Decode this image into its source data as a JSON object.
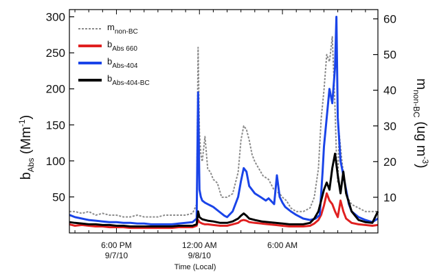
{
  "chart_data": {
    "type": "line",
    "title": "",
    "xlabel": "Time (Local)",
    "ylabel_left": {
      "main": "b",
      "sub": "Abs",
      "suffix": " (Mm",
      "sup": "-1",
      "end": ")"
    },
    "ylabel_right": {
      "main": "m",
      "sub": "non-BC",
      "suffix": " (ug m",
      "sup": "-3",
      "end": ")"
    },
    "x_ticks": [
      {
        "x": 18,
        "label": "6:00 PM",
        "sublabel": "9/7/10"
      },
      {
        "x": 24,
        "label": "12:00 AM",
        "sublabel": "9/8/10"
      },
      {
        "x": 30,
        "label": "6:00 AM",
        "sublabel": ""
      }
    ],
    "xlim": [
      14.6,
      36.9
    ],
    "ylim_left": [
      0,
      310
    ],
    "ylim_right": [
      0,
      62.6
    ],
    "y_ticks_left": [
      50,
      100,
      150,
      200,
      250,
      300
    ],
    "y_ticks_right": [
      10,
      20,
      30,
      40,
      50,
      60
    ],
    "legend_position": "top-left",
    "series": [
      {
        "name": "m",
        "name_sub": "non-BC",
        "axis": "right",
        "color": "#8a8a8a",
        "dash": true,
        "x": [
          14.6,
          15,
          15.5,
          16,
          16.5,
          17,
          17.5,
          18,
          18.5,
          19,
          19.5,
          20,
          20.5,
          21,
          21.5,
          22,
          22.5,
          23,
          23.5,
          23.8,
          23.9,
          24.0,
          24.1,
          24.2,
          24.4,
          24.6,
          24.8,
          25.0,
          25.3,
          25.6,
          26.0,
          26.4,
          26.8,
          27.0,
          27.2,
          27.4,
          27.6,
          27.8,
          28.0,
          28.3,
          28.6,
          29.0,
          29.4,
          29.8,
          30.0,
          30.3,
          30.6,
          31.0,
          31.5,
          32.0,
          32.3,
          32.6,
          32.8,
          33.0,
          33.2,
          33.4,
          33.6,
          33.7,
          33.8,
          33.9,
          34.0,
          34.1,
          34.3,
          34.5,
          34.7,
          35.0,
          35.5,
          36.0,
          36.5,
          36.9
        ],
        "y": [
          6,
          6,
          5.5,
          6,
          5,
          5.5,
          5,
          5,
          4.5,
          4.5,
          5,
          4.5,
          4.5,
          4.5,
          5,
          5,
          5,
          5,
          5.5,
          8,
          52,
          28,
          22,
          20,
          27,
          18,
          17,
          15,
          14,
          10,
          10,
          11,
          17,
          26,
          30,
          29,
          26,
          22,
          20,
          18,
          16,
          15,
          12,
          11,
          10,
          9,
          7,
          6,
          6,
          7,
          10,
          18,
          32,
          40,
          50,
          48,
          55,
          45,
          35,
          22,
          14,
          28,
          20,
          14,
          10,
          8,
          7,
          6,
          6,
          6
        ]
      },
      {
        "name": "b",
        "name_sub": "Abs 660",
        "axis": "left",
        "color": "#e02020",
        "dash": false,
        "x": [
          14.6,
          15,
          15.5,
          16,
          16.5,
          17,
          17.5,
          18,
          18.5,
          19,
          19.5,
          20,
          20.5,
          21,
          21.5,
          22,
          22.5,
          23,
          23.5,
          23.8,
          23.9,
          24.0,
          24.2,
          24.4,
          24.6,
          25.0,
          25.5,
          26.0,
          26.4,
          26.8,
          27.0,
          27.2,
          27.4,
          27.6,
          28.0,
          28.5,
          29.0,
          29.5,
          30.0,
          30.5,
          31.0,
          31.5,
          32.0,
          32.3,
          32.6,
          32.8,
          33.0,
          33.2,
          33.4,
          33.6,
          33.8,
          34.0,
          34.2,
          34.4,
          34.6,
          35.0,
          35.5,
          36.0,
          36.5,
          36.9
        ],
        "y": [
          12,
          10,
          11,
          10,
          9,
          9,
          8,
          8,
          8,
          7,
          7,
          7,
          7,
          7,
          7,
          7,
          8,
          8,
          8,
          10,
          18,
          15,
          13,
          12,
          12,
          11,
          10,
          10,
          12,
          14,
          17,
          18,
          17,
          15,
          14,
          13,
          12,
          11,
          10,
          9,
          9,
          9,
          10,
          13,
          18,
          25,
          38,
          55,
          45,
          40,
          30,
          22,
          45,
          30,
          20,
          14,
          12,
          11,
          10,
          11
        ]
      },
      {
        "name": "b",
        "name_sub": "Abs-404",
        "axis": "left",
        "color": "#1a44e8",
        "dash": false,
        "x": [
          14.6,
          15,
          15.5,
          16,
          16.5,
          17,
          17.5,
          18,
          18.5,
          19,
          19.5,
          20,
          20.5,
          21,
          21.5,
          22,
          22.5,
          23,
          23.5,
          23.8,
          23.9,
          24.0,
          24.1,
          24.2,
          24.4,
          24.6,
          24.8,
          25.0,
          25.4,
          25.8,
          26.0,
          26.4,
          26.8,
          27.0,
          27.2,
          27.4,
          27.6,
          27.8,
          28.0,
          28.4,
          28.8,
          29.0,
          29.4,
          29.6,
          29.8,
          30.0,
          30.2,
          30.6,
          31.0,
          31.5,
          32.0,
          32.4,
          32.7,
          32.9,
          33.0,
          33.2,
          33.4,
          33.6,
          33.8,
          33.9,
          34.0,
          34.2,
          34.4,
          34.6,
          34.8,
          35.0,
          35.5,
          36.0,
          36.5,
          36.9
        ],
        "y": [
          25,
          22,
          20,
          18,
          17,
          16,
          15,
          15,
          14,
          14,
          13,
          13,
          12,
          12,
          12,
          12,
          13,
          14,
          15,
          20,
          195,
          60,
          50,
          45,
          42,
          40,
          38,
          36,
          30,
          24,
          22,
          30,
          50,
          72,
          90,
          85,
          65,
          60,
          55,
          50,
          45,
          48,
          40,
          80,
          50,
          42,
          36,
          30,
          25,
          20,
          18,
          20,
          25,
          85,
          120,
          160,
          200,
          180,
          230,
          300,
          160,
          100,
          80,
          60,
          40,
          30,
          22,
          18,
          15,
          20
        ]
      },
      {
        "name": "b",
        "name_sub": "Abs-404-BC",
        "axis": "left",
        "color": "#000000",
        "dash": false,
        "x": [
          14.6,
          15,
          15.5,
          16,
          16.5,
          17,
          17.5,
          18,
          18.5,
          19,
          19.5,
          20,
          20.5,
          21,
          21.5,
          22,
          22.5,
          23,
          23.5,
          23.8,
          23.9,
          24.0,
          24.2,
          24.4,
          24.6,
          25.0,
          25.5,
          26.0,
          26.4,
          26.8,
          27.0,
          27.2,
          27.4,
          27.6,
          28.0,
          28.5,
          29.0,
          29.5,
          30.0,
          30.5,
          31.0,
          31.5,
          32.0,
          32.3,
          32.6,
          32.8,
          33.0,
          33.2,
          33.4,
          33.6,
          33.8,
          34.0,
          34.2,
          34.4,
          34.6,
          35.0,
          35.5,
          36.0,
          36.5,
          36.9
        ],
        "y": [
          15,
          14,
          13,
          12,
          12,
          11,
          11,
          10,
          10,
          9,
          9,
          9,
          9,
          9,
          9,
          9,
          10,
          10,
          10,
          12,
          30,
          22,
          19,
          18,
          17,
          16,
          14,
          14,
          16,
          20,
          24,
          27,
          24,
          20,
          18,
          16,
          15,
          14,
          13,
          12,
          12,
          12,
          14,
          20,
          30,
          45,
          60,
          70,
          60,
          90,
          110,
          80,
          55,
          85,
          55,
          30,
          18,
          15,
          14,
          30
        ]
      }
    ]
  }
}
